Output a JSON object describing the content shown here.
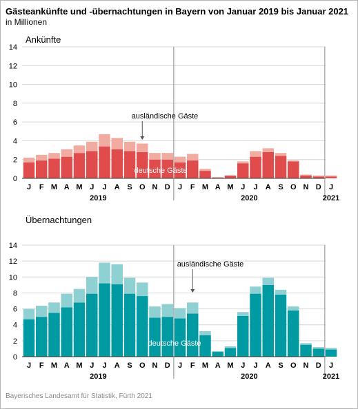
{
  "title": "Gästeankünfte und -übernachtungen in Bayern von Januar 2019 bis Januar 2021",
  "subtitle": "in Millionen",
  "source": "Bayerisches Landesamt für Statistik, Fürth 2021",
  "colors": {
    "arrivals_domestic": "#e04b4b",
    "arrivals_foreign": "#f2aba0",
    "nights_domestic": "#009aa3",
    "nights_foreign": "#8fd0d3",
    "grid": "#d6d6d6",
    "separator": "#8a8a8a"
  },
  "chart_data": [
    {
      "type": "bar",
      "stacked": true,
      "panel_title": "Ankünfte",
      "ylim": [
        0,
        14
      ],
      "yticks": [
        0,
        2,
        4,
        6,
        8,
        10,
        12,
        14
      ],
      "grid": true,
      "categories": [
        "J",
        "F",
        "M",
        "A",
        "M",
        "J",
        "J",
        "A",
        "S",
        "O",
        "N",
        "D",
        "J",
        "F",
        "M",
        "A",
        "M",
        "J",
        "J",
        "A",
        "S",
        "O",
        "N",
        "D",
        "J"
      ],
      "years": [
        {
          "label": "2019",
          "start": 0,
          "end": 11
        },
        {
          "label": "2020",
          "start": 12,
          "end": 23
        },
        {
          "label": "2021",
          "start": 24,
          "end": 24
        }
      ],
      "series": [
        {
          "name": "deutsche Gäste",
          "values": [
            1.7,
            1.9,
            2.1,
            2.3,
            2.7,
            2.9,
            3.4,
            3.1,
            2.9,
            2.8,
            2.0,
            2.0,
            1.7,
            1.9,
            0.8,
            0.1,
            0.3,
            1.6,
            2.3,
            2.8,
            2.4,
            1.8,
            0.3,
            0.2,
            0.2
          ]
        },
        {
          "name": "ausländische Gäste",
          "values": [
            0.5,
            0.6,
            0.6,
            0.8,
            0.8,
            1.0,
            1.3,
            1.2,
            1.0,
            0.9,
            0.7,
            0.7,
            0.6,
            0.7,
            0.2,
            0.0,
            0.0,
            0.2,
            0.6,
            0.4,
            0.3,
            0.1,
            0.1,
            0.1,
            0.1
          ]
        }
      ],
      "annotations": [
        {
          "text": "ausländische Gäste",
          "target_index": 9,
          "series": 1
        },
        {
          "text": "deutsche Gäste",
          "target_index": 12,
          "series": 0
        }
      ]
    },
    {
      "type": "bar",
      "stacked": true,
      "panel_title": "Übernachtungen",
      "ylim": [
        0,
        14
      ],
      "yticks": [
        0,
        2,
        4,
        6,
        8,
        10,
        12,
        14
      ],
      "grid": true,
      "categories": [
        "J",
        "F",
        "M",
        "A",
        "M",
        "J",
        "J",
        "A",
        "S",
        "O",
        "N",
        "D",
        "J",
        "F",
        "M",
        "A",
        "M",
        "J",
        "J",
        "A",
        "S",
        "O",
        "N",
        "D",
        "J"
      ],
      "years": [
        {
          "label": "2019",
          "start": 0,
          "end": 11
        },
        {
          "label": "2020",
          "start": 12,
          "end": 23
        },
        {
          "label": "2021",
          "start": 24,
          "end": 24
        }
      ],
      "series": [
        {
          "name": "deutsche Gäste",
          "values": [
            4.7,
            5.0,
            5.5,
            6.2,
            6.8,
            7.9,
            9.2,
            9.1,
            7.9,
            7.6,
            4.9,
            5.0,
            4.8,
            5.4,
            2.7,
            0.6,
            1.1,
            5.1,
            7.9,
            9.0,
            7.8,
            5.8,
            1.5,
            1.0,
            0.9
          ]
        },
        {
          "name": "ausländische Gäste",
          "values": [
            1.3,
            1.4,
            1.3,
            1.7,
            1.7,
            2.1,
            2.6,
            2.5,
            2.0,
            1.7,
            1.4,
            1.6,
            1.3,
            1.4,
            0.5,
            0.1,
            0.2,
            0.5,
            0.9,
            0.9,
            0.6,
            0.5,
            0.2,
            0.2,
            0.2
          ]
        }
      ],
      "annotations": [
        {
          "text": "ausländische Gäste",
          "target_index": 13,
          "series": 1
        },
        {
          "text": "deutsche Gäste",
          "target_index": 12,
          "series": 0
        }
      ]
    }
  ]
}
